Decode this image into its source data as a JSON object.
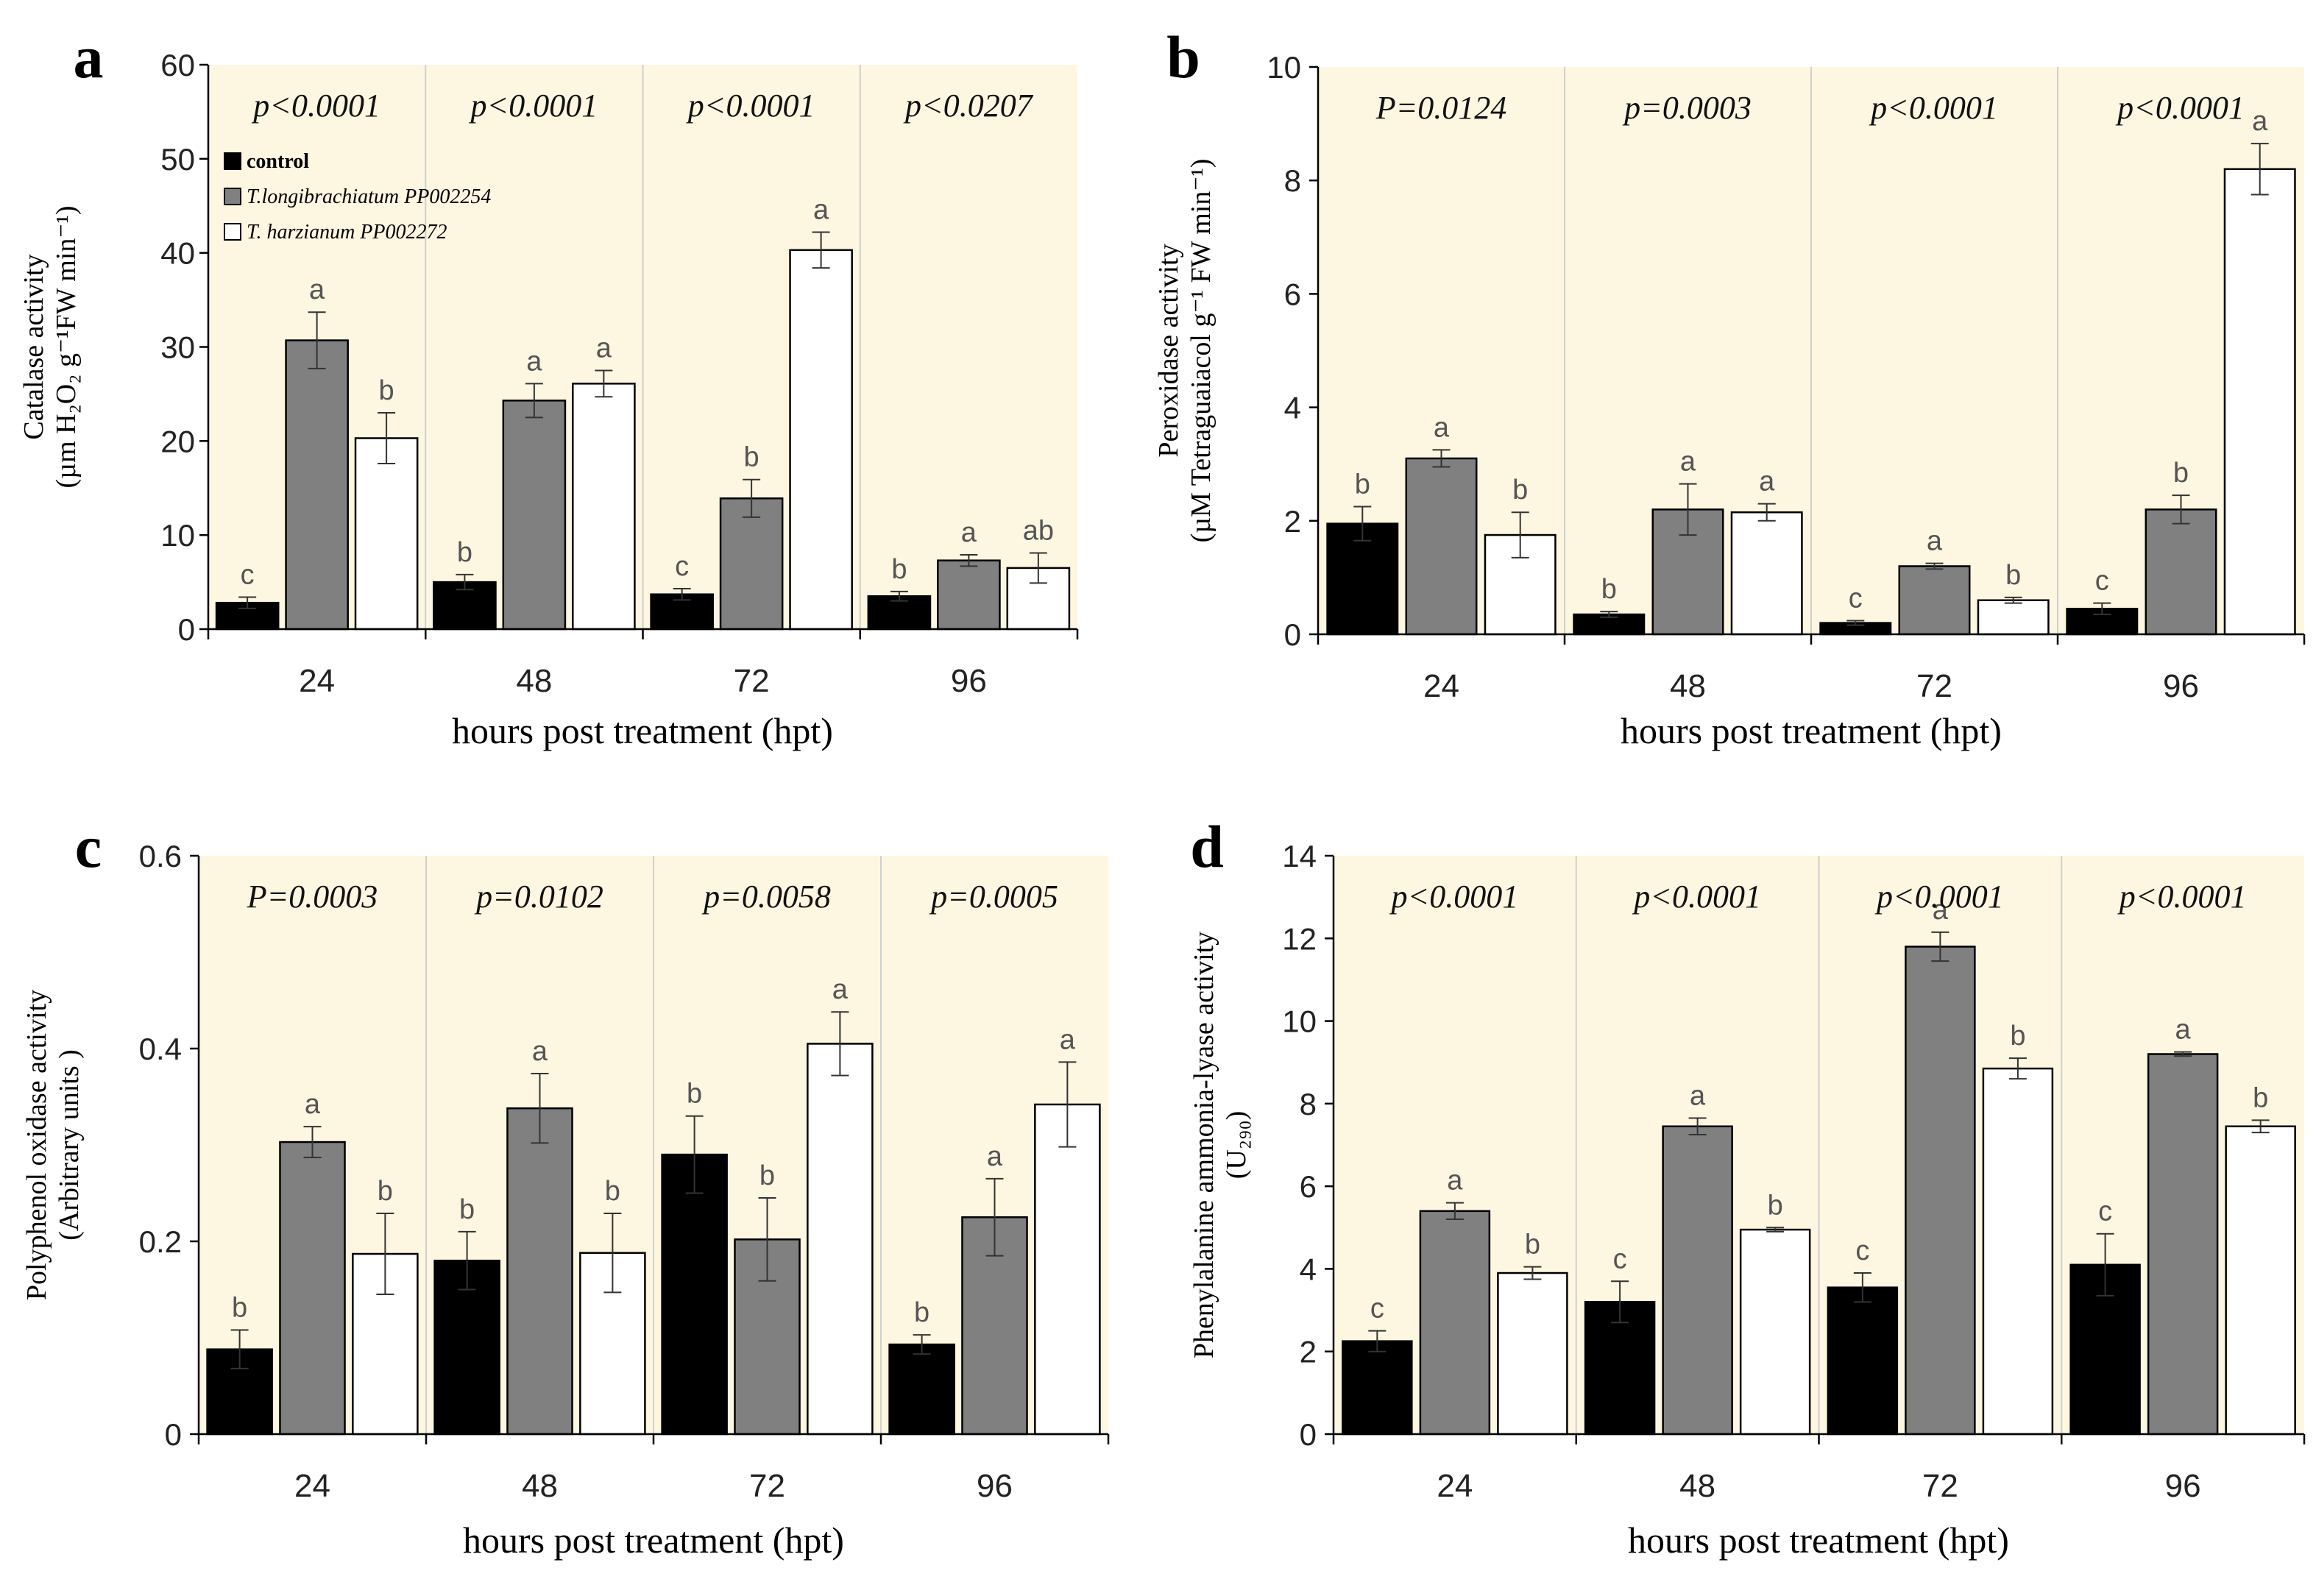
{
  "colors": {
    "plot_bg": "#fdf6e1",
    "control": "#000000",
    "t_longibrachiatum": "#808080",
    "t_harzianum": "#ffffff",
    "letter": "#555555",
    "divider": "#cfcfcf"
  },
  "chart_data": [
    {
      "type": "bar",
      "panel_label": "a",
      "ylabel_line1": "Catalase activity",
      "ylabel_line2": "(µm H₂O₂ g⁻¹FW min⁻¹)",
      "xlabel": "hours post treatment (hpt)",
      "categories": [
        "24",
        "48",
        "72",
        "96"
      ],
      "ylim": [
        0,
        60
      ],
      "yticks": [
        0,
        10,
        20,
        30,
        40,
        50,
        60
      ],
      "p_values": [
        "p<0.0001",
        "p<0.0001",
        "p<0.0001",
        "p<0.0207"
      ],
      "legend": {
        "position": "top-left",
        "entries": [
          "control",
          "T.longibrachiatum PP002254",
          "T. harzianum PP002272"
        ]
      },
      "series": [
        {
          "name": "control",
          "values": [
            2.8,
            5.0,
            3.7,
            3.5
          ],
          "errors": [
            0.6,
            0.8,
            0.6,
            0.5
          ],
          "letters": [
            "c",
            "b",
            "c",
            "b"
          ]
        },
        {
          "name": "T.longibrachiatum PP002254",
          "values": [
            30.7,
            24.3,
            13.9,
            7.3
          ],
          "errors": [
            3.0,
            1.8,
            2.0,
            0.6
          ],
          "letters": [
            "a",
            "a",
            "b",
            "a"
          ]
        },
        {
          "name": "T. harzianum PP002272",
          "values": [
            20.3,
            26.1,
            40.3,
            6.5
          ],
          "errors": [
            2.7,
            1.4,
            1.9,
            1.6
          ],
          "letters": [
            "b",
            "a",
            "a",
            "ab"
          ]
        }
      ]
    },
    {
      "type": "bar",
      "panel_label": "b",
      "ylabel_line1": "Peroxidase activity",
      "ylabel_line2": "(µM Tetraguaiacol g⁻¹ FW min⁻¹)",
      "xlabel": "hours post treatment (hpt)",
      "categories": [
        "24",
        "48",
        "72",
        "96"
      ],
      "ylim": [
        0,
        10
      ],
      "yticks": [
        0,
        2,
        4,
        6,
        8,
        10
      ],
      "p_values": [
        "P=0.0124",
        "p=0.0003",
        "p<0.0001",
        "p<0.0001"
      ],
      "series": [
        {
          "name": "control",
          "values": [
            1.95,
            0.35,
            0.2,
            0.45
          ],
          "errors": [
            0.3,
            0.05,
            0.04,
            0.1
          ],
          "letters": [
            "b",
            "b",
            "c",
            "c"
          ]
        },
        {
          "name": "T.longibrachiatum PP002254",
          "values": [
            3.1,
            2.2,
            1.2,
            2.2
          ],
          "errors": [
            0.15,
            0.45,
            0.05,
            0.25
          ],
          "letters": [
            "a",
            "a",
            "a",
            "b"
          ]
        },
        {
          "name": "T. harzianum PP002272",
          "values": [
            1.75,
            2.15,
            0.6,
            8.2
          ],
          "errors": [
            0.4,
            0.15,
            0.05,
            0.45
          ],
          "letters": [
            "b",
            "a",
            "b",
            "a"
          ]
        }
      ]
    },
    {
      "type": "bar",
      "panel_label": "c",
      "ylabel_line1": "Polyphenol oxidase activity",
      "ylabel_line2": "(Arbitrary units )",
      "xlabel": "hours post treatment (hpt)",
      "categories": [
        "24",
        "48",
        "72",
        "96"
      ],
      "ylim": [
        0,
        0.6
      ],
      "yticks": [
        0,
        0.2,
        0.4,
        0.6
      ],
      "ytick_labels": [
        "0",
        "0.2",
        "0.4",
        "0.6"
      ],
      "p_values": [
        "P=0.0003",
        "p=0.0102",
        "p=0.0058",
        "p=0.0005"
      ],
      "series": [
        {
          "name": "control",
          "values": [
            0.088,
            0.18,
            0.29,
            0.093
          ],
          "errors": [
            0.02,
            0.03,
            0.04,
            0.01
          ],
          "letters": [
            "b",
            "b",
            "b",
            "b"
          ]
        },
        {
          "name": "T.longibrachiatum PP002254",
          "values": [
            0.303,
            0.338,
            0.202,
            0.225
          ],
          "errors": [
            0.016,
            0.036,
            0.043,
            0.04
          ],
          "letters": [
            "a",
            "a",
            "b",
            "a"
          ]
        },
        {
          "name": "T. harzianum PP002272",
          "values": [
            0.187,
            0.188,
            0.405,
            0.342
          ],
          "errors": [
            0.042,
            0.041,
            0.033,
            0.044
          ],
          "letters": [
            "b",
            "b",
            "a",
            "a"
          ]
        }
      ]
    },
    {
      "type": "bar",
      "panel_label": "d",
      "ylabel_line1": "Phenylalanine ammonia-lyase activity",
      "ylabel_line2": "(U₂₉₀)",
      "xlabel": "hours post treatment (hpt)",
      "categories": [
        "24",
        "48",
        "72",
        "96"
      ],
      "ylim": [
        0,
        14
      ],
      "yticks": [
        0,
        2,
        4,
        6,
        8,
        10,
        12,
        14
      ],
      "p_values": [
        "p<0.0001",
        "p<0.0001",
        "p<0.0001",
        "p<0.0001"
      ],
      "series": [
        {
          "name": "control",
          "values": [
            2.25,
            3.2,
            3.55,
            4.1
          ],
          "errors": [
            0.25,
            0.5,
            0.35,
            0.75
          ],
          "letters": [
            "c",
            "c",
            "c",
            "c"
          ]
        },
        {
          "name": "T.longibrachiatum PP002254",
          "values": [
            5.4,
            7.45,
            11.8,
            9.2
          ],
          "errors": [
            0.2,
            0.2,
            0.35,
            0.05
          ],
          "letters": [
            "a",
            "a",
            "a",
            "a"
          ]
        },
        {
          "name": "T. harzianum PP002272",
          "values": [
            3.9,
            4.95,
            8.85,
            7.45
          ],
          "errors": [
            0.15,
            0.05,
            0.25,
            0.15
          ],
          "letters": [
            "b",
            "b",
            "b",
            "b"
          ]
        }
      ]
    }
  ]
}
